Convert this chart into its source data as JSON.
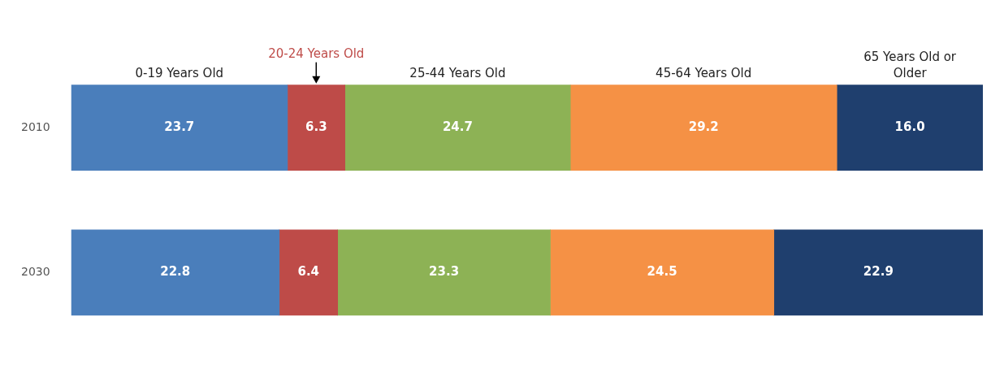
{
  "chart_data": {
    "type": "bar",
    "orientation": "horizontal",
    "stacked": true,
    "tick_labels": "y",
    "categories": [
      "2010",
      "2030"
    ],
    "series": [
      {
        "name": "0-19 Years Old",
        "color": "#4a7ebb",
        "values": [
          23.7,
          22.8
        ],
        "value_labels": [
          "23.7",
          "22.8"
        ]
      },
      {
        "name": "20-24 Years Old",
        "color": "#be4b48",
        "values": [
          6.3,
          6.4
        ],
        "value_labels": [
          "6.3",
          "6.4"
        ]
      },
      {
        "name": "25-44 Years Old",
        "color": "#8db255",
        "values": [
          24.7,
          23.3
        ],
        "value_labels": [
          "24.7",
          "23.3"
        ]
      },
      {
        "name": "45-64 Years Old",
        "color": "#f59145",
        "values": [
          29.2,
          24.5
        ],
        "value_labels": [
          "29.2",
          "24.5"
        ]
      },
      {
        "name": "65 Years Old or Older",
        "color": "#1f3f6e",
        "values": [
          16.0,
          22.9
        ],
        "value_labels": [
          "16.0",
          "22.9"
        ]
      }
    ]
  }
}
